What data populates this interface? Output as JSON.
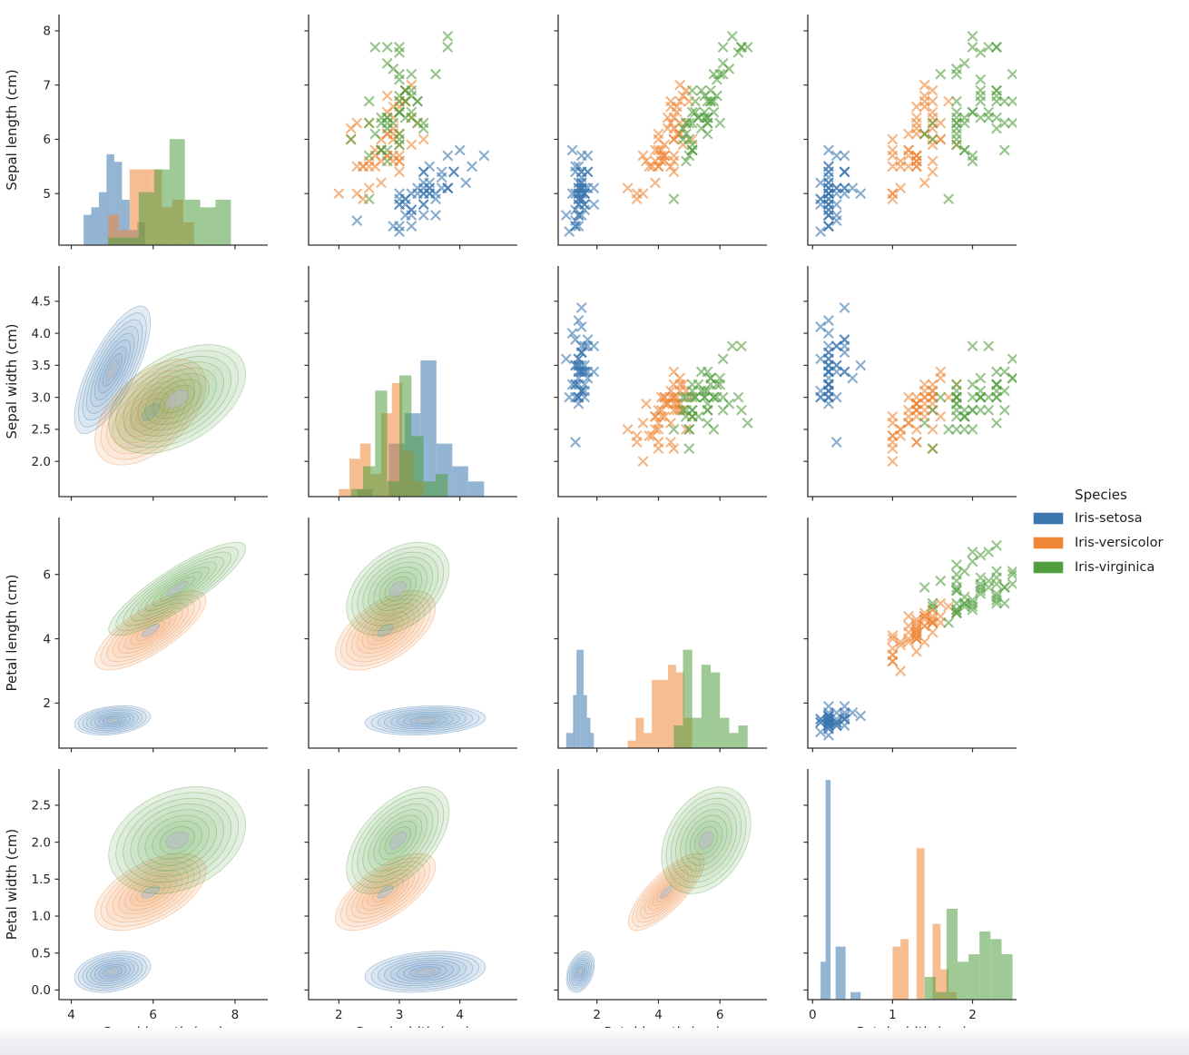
{
  "legend": {
    "title": "Species",
    "items": [
      {
        "label": "Iris-setosa",
        "color": "#3b76af"
      },
      {
        "label": "Iris-versicolor",
        "color": "#ef8636"
      },
      {
        "label": "Iris-virginica",
        "color": "#519e3f"
      }
    ]
  },
  "chart_data": {
    "type": "scatter",
    "subtype": "pairplot",
    "grid": {
      "diagonal": "histogram",
      "upper_triangle": "scatter",
      "lower_triangle": "kde-contours"
    },
    "marker": "x",
    "grid_lines": "off",
    "legend_position": "right",
    "variables": [
      {
        "key": "sepal_length",
        "label": "Sepal length (cm)",
        "x_ticks": [
          "4",
          "6",
          "8"
        ],
        "y_ticks": [
          "5",
          "6",
          "7",
          "8"
        ],
        "x_range": [
          3.7,
          8.8
        ],
        "y_range": [
          4.05,
          8.3
        ]
      },
      {
        "key": "sepal_width",
        "label": "Sepal width (cm)",
        "x_ticks": [
          "2",
          "3",
          "4"
        ],
        "y_ticks": [
          "2.0",
          "2.5",
          "3.0",
          "3.5",
          "4.0",
          "4.5"
        ],
        "x_range": [
          1.5,
          4.95
        ],
        "y_range": [
          1.45,
          5.05
        ]
      },
      {
        "key": "petal_length",
        "label": "Petal length (cm)",
        "x_ticks": [
          "2",
          "4",
          "6"
        ],
        "y_ticks": [
          "2",
          "4",
          "6"
        ],
        "x_range": [
          0.74,
          7.53
        ],
        "y_range": [
          0.6,
          7.77
        ]
      },
      {
        "key": "petal_width",
        "label": "Petal width (cm)",
        "x_ticks": [
          "0",
          "1",
          "2"
        ],
        "y_ticks": [
          "0.0",
          "0.5",
          "1.0",
          "1.5",
          "2.0",
          "2.5"
        ],
        "x_range": [
          -0.06,
          2.55
        ],
        "y_range": [
          -0.13,
          2.99
        ]
      }
    ],
    "series": [
      {
        "name": "Iris-setosa",
        "color": "#3b76af",
        "data": [
          [
            5.1,
            3.5,
            1.4,
            0.2
          ],
          [
            4.9,
            3.0,
            1.4,
            0.2
          ],
          [
            4.7,
            3.2,
            1.3,
            0.2
          ],
          [
            4.6,
            3.1,
            1.5,
            0.2
          ],
          [
            5.0,
            3.6,
            1.4,
            0.2
          ],
          [
            5.4,
            3.9,
            1.7,
            0.4
          ],
          [
            4.6,
            3.4,
            1.4,
            0.3
          ],
          [
            5.0,
            3.4,
            1.5,
            0.2
          ],
          [
            4.4,
            2.9,
            1.4,
            0.2
          ],
          [
            4.9,
            3.1,
            1.5,
            0.1
          ],
          [
            5.4,
            3.7,
            1.5,
            0.2
          ],
          [
            4.8,
            3.4,
            1.6,
            0.2
          ],
          [
            4.8,
            3.0,
            1.4,
            0.1
          ],
          [
            4.3,
            3.0,
            1.1,
            0.1
          ],
          [
            5.8,
            4.0,
            1.2,
            0.2
          ],
          [
            5.7,
            4.4,
            1.5,
            0.4
          ],
          [
            5.4,
            3.9,
            1.3,
            0.4
          ],
          [
            5.1,
            3.5,
            1.4,
            0.3
          ],
          [
            5.7,
            3.8,
            1.7,
            0.3
          ],
          [
            5.1,
            3.8,
            1.5,
            0.3
          ],
          [
            5.4,
            3.4,
            1.7,
            0.2
          ],
          [
            5.1,
            3.7,
            1.5,
            0.4
          ],
          [
            4.6,
            3.6,
            1.0,
            0.2
          ],
          [
            5.1,
            3.3,
            1.7,
            0.5
          ],
          [
            4.8,
            3.4,
            1.9,
            0.2
          ],
          [
            5.0,
            3.0,
            1.6,
            0.2
          ],
          [
            5.0,
            3.4,
            1.6,
            0.4
          ],
          [
            5.2,
            3.5,
            1.5,
            0.2
          ],
          [
            5.2,
            3.4,
            1.4,
            0.2
          ],
          [
            4.7,
            3.2,
            1.6,
            0.2
          ],
          [
            4.8,
            3.1,
            1.6,
            0.2
          ],
          [
            5.4,
            3.4,
            1.5,
            0.4
          ],
          [
            5.2,
            4.1,
            1.5,
            0.1
          ],
          [
            5.5,
            4.2,
            1.4,
            0.2
          ],
          [
            4.9,
            3.1,
            1.5,
            0.2
          ],
          [
            5.0,
            3.2,
            1.2,
            0.2
          ],
          [
            5.5,
            3.5,
            1.3,
            0.2
          ],
          [
            4.9,
            3.6,
            1.4,
            0.1
          ],
          [
            4.4,
            3.0,
            1.3,
            0.2
          ],
          [
            5.1,
            3.4,
            1.5,
            0.2
          ],
          [
            5.0,
            3.5,
            1.3,
            0.3
          ],
          [
            4.5,
            2.3,
            1.3,
            0.3
          ],
          [
            4.4,
            3.2,
            1.3,
            0.2
          ],
          [
            5.0,
            3.5,
            1.6,
            0.6
          ],
          [
            5.1,
            3.8,
            1.9,
            0.4
          ],
          [
            4.8,
            3.0,
            1.4,
            0.3
          ],
          [
            5.1,
            3.8,
            1.6,
            0.2
          ],
          [
            4.6,
            3.2,
            1.4,
            0.2
          ],
          [
            5.3,
            3.7,
            1.5,
            0.2
          ],
          [
            5.0,
            3.3,
            1.4,
            0.2
          ]
        ]
      },
      {
        "name": "Iris-versicolor",
        "color": "#ef8636",
        "data": [
          [
            7.0,
            3.2,
            4.7,
            1.4
          ],
          [
            6.4,
            3.2,
            4.5,
            1.5
          ],
          [
            6.9,
            3.1,
            4.9,
            1.5
          ],
          [
            5.5,
            2.3,
            4.0,
            1.3
          ],
          [
            6.5,
            2.8,
            4.6,
            1.5
          ],
          [
            5.7,
            2.8,
            4.5,
            1.3
          ],
          [
            6.3,
            3.3,
            4.7,
            1.6
          ],
          [
            4.9,
            2.4,
            3.3,
            1.0
          ],
          [
            6.6,
            2.9,
            4.6,
            1.3
          ],
          [
            5.2,
            2.7,
            3.9,
            1.4
          ],
          [
            5.0,
            2.0,
            3.5,
            1.0
          ],
          [
            5.9,
            3.0,
            4.2,
            1.5
          ],
          [
            6.0,
            2.2,
            4.0,
            1.0
          ],
          [
            6.1,
            2.9,
            4.7,
            1.4
          ],
          [
            5.6,
            2.9,
            3.6,
            1.3
          ],
          [
            6.7,
            3.1,
            4.4,
            1.4
          ],
          [
            5.6,
            3.0,
            4.5,
            1.5
          ],
          [
            5.8,
            2.7,
            4.1,
            1.0
          ],
          [
            6.2,
            2.2,
            4.5,
            1.5
          ],
          [
            5.6,
            2.5,
            3.9,
            1.1
          ],
          [
            5.9,
            3.2,
            4.8,
            1.8
          ],
          [
            6.1,
            2.8,
            4.0,
            1.3
          ],
          [
            6.3,
            2.5,
            4.9,
            1.5
          ],
          [
            6.1,
            2.8,
            4.7,
            1.2
          ],
          [
            6.4,
            2.9,
            4.3,
            1.3
          ],
          [
            6.6,
            3.0,
            4.4,
            1.4
          ],
          [
            6.8,
            2.8,
            4.8,
            1.4
          ],
          [
            6.7,
            3.0,
            5.0,
            1.7
          ],
          [
            6.0,
            2.9,
            4.5,
            1.5
          ],
          [
            5.7,
            2.6,
            3.5,
            1.0
          ],
          [
            5.5,
            2.4,
            3.8,
            1.1
          ],
          [
            5.5,
            2.4,
            3.7,
            1.0
          ],
          [
            5.8,
            2.7,
            3.9,
            1.2
          ],
          [
            6.0,
            2.7,
            5.1,
            1.6
          ],
          [
            5.4,
            3.0,
            4.5,
            1.5
          ],
          [
            6.0,
            3.4,
            4.5,
            1.6
          ],
          [
            6.7,
            3.1,
            4.7,
            1.5
          ],
          [
            6.3,
            2.3,
            4.4,
            1.3
          ],
          [
            5.6,
            3.0,
            4.1,
            1.3
          ],
          [
            5.5,
            2.5,
            4.0,
            1.3
          ],
          [
            5.5,
            2.6,
            4.4,
            1.2
          ],
          [
            6.1,
            3.0,
            4.6,
            1.4
          ],
          [
            5.8,
            2.6,
            4.0,
            1.2
          ],
          [
            5.0,
            2.3,
            3.3,
            1.0
          ],
          [
            5.6,
            2.7,
            4.2,
            1.3
          ],
          [
            5.7,
            3.0,
            4.2,
            1.2
          ],
          [
            5.7,
            2.9,
            4.2,
            1.3
          ],
          [
            6.2,
            2.9,
            4.3,
            1.3
          ],
          [
            5.1,
            2.5,
            3.0,
            1.1
          ],
          [
            5.7,
            2.8,
            4.1,
            1.3
          ]
        ]
      },
      {
        "name": "Iris-virginica",
        "color": "#519e3f",
        "data": [
          [
            6.3,
            3.3,
            6.0,
            2.5
          ],
          [
            5.8,
            2.7,
            5.1,
            1.9
          ],
          [
            7.1,
            3.0,
            5.9,
            2.1
          ],
          [
            6.3,
            2.9,
            5.6,
            1.8
          ],
          [
            6.5,
            3.0,
            5.8,
            2.2
          ],
          [
            7.6,
            3.0,
            6.6,
            2.1
          ],
          [
            4.9,
            2.5,
            4.5,
            1.7
          ],
          [
            7.3,
            2.9,
            6.3,
            1.8
          ],
          [
            6.7,
            2.5,
            5.8,
            1.8
          ],
          [
            7.2,
            3.6,
            6.1,
            2.5
          ],
          [
            6.5,
            3.2,
            5.1,
            2.0
          ],
          [
            6.4,
            2.7,
            5.3,
            1.9
          ],
          [
            6.8,
            3.0,
            5.5,
            2.1
          ],
          [
            5.7,
            2.5,
            5.0,
            2.0
          ],
          [
            5.8,
            2.8,
            5.1,
            2.4
          ],
          [
            6.4,
            3.2,
            5.3,
            2.3
          ],
          [
            6.5,
            3.0,
            5.5,
            1.8
          ],
          [
            7.7,
            3.8,
            6.7,
            2.2
          ],
          [
            7.7,
            2.6,
            6.9,
            2.3
          ],
          [
            6.0,
            2.2,
            5.0,
            1.5
          ],
          [
            6.9,
            3.2,
            5.7,
            2.3
          ],
          [
            5.6,
            2.8,
            4.9,
            2.0
          ],
          [
            7.7,
            2.8,
            6.7,
            2.0
          ],
          [
            6.3,
            2.7,
            4.9,
            1.8
          ],
          [
            6.7,
            3.3,
            5.7,
            2.1
          ],
          [
            7.2,
            3.2,
            6.0,
            1.8
          ],
          [
            6.2,
            2.8,
            4.8,
            1.8
          ],
          [
            6.1,
            3.0,
            4.9,
            1.8
          ],
          [
            6.4,
            2.8,
            5.6,
            2.1
          ],
          [
            7.2,
            3.0,
            5.8,
            1.6
          ],
          [
            7.4,
            2.8,
            6.1,
            1.9
          ],
          [
            7.9,
            3.8,
            6.4,
            2.0
          ],
          [
            6.4,
            2.8,
            5.6,
            2.2
          ],
          [
            6.3,
            2.8,
            5.1,
            1.5
          ],
          [
            6.1,
            2.6,
            5.6,
            1.4
          ],
          [
            7.7,
            3.0,
            6.1,
            2.3
          ],
          [
            6.3,
            3.4,
            5.6,
            2.4
          ],
          [
            6.4,
            3.1,
            5.5,
            1.8
          ],
          [
            6.0,
            3.0,
            4.8,
            1.8
          ],
          [
            6.9,
            3.1,
            5.4,
            2.1
          ],
          [
            6.7,
            3.1,
            5.6,
            2.4
          ],
          [
            6.9,
            3.1,
            5.1,
            2.3
          ],
          [
            5.8,
            2.7,
            5.1,
            1.9
          ],
          [
            6.8,
            3.2,
            5.9,
            2.3
          ],
          [
            6.7,
            3.3,
            5.7,
            2.5
          ],
          [
            6.7,
            3.0,
            5.2,
            2.3
          ],
          [
            6.3,
            2.5,
            5.0,
            1.9
          ],
          [
            6.5,
            3.0,
            5.2,
            2.0
          ],
          [
            6.2,
            3.4,
            5.4,
            2.3
          ],
          [
            5.9,
            3.0,
            5.1,
            1.8
          ]
        ]
      }
    ]
  }
}
